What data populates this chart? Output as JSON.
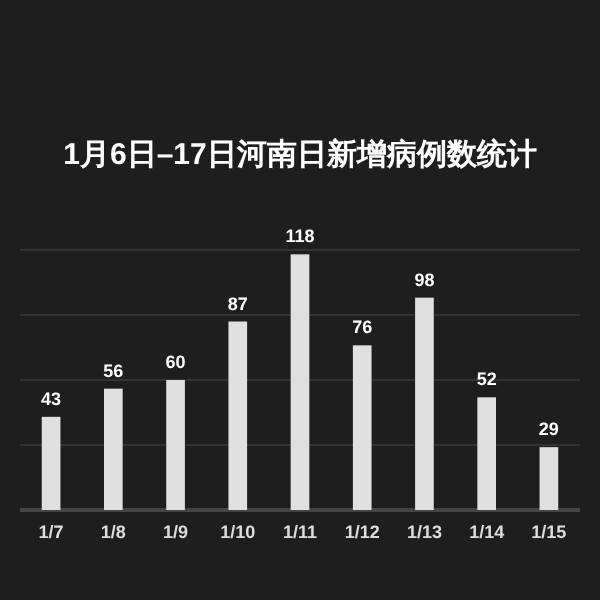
{
  "chart_data": {
    "type": "bar",
    "title": "1月6日–17日河南日新增病例数统计",
    "categories": [
      "1/7",
      "1/8",
      "1/9",
      "1/10",
      "1/11",
      "1/12",
      "1/13",
      "1/14",
      "1/15"
    ],
    "values": [
      43,
      56,
      60,
      87,
      118,
      76,
      98,
      52,
      29
    ],
    "color": "#e0e0e0",
    "data_labels": true,
    "ylim": [
      0,
      120
    ],
    "yticks": [
      {
        "value": 0,
        "label": null
      },
      {
        "value": 30,
        "label": null
      },
      {
        "value": 60,
        "label": null
      },
      {
        "value": 90,
        "label": null
      },
      {
        "value": 120,
        "label": null
      }
    ],
    "grid": "y",
    "tick_labels": "x"
  }
}
